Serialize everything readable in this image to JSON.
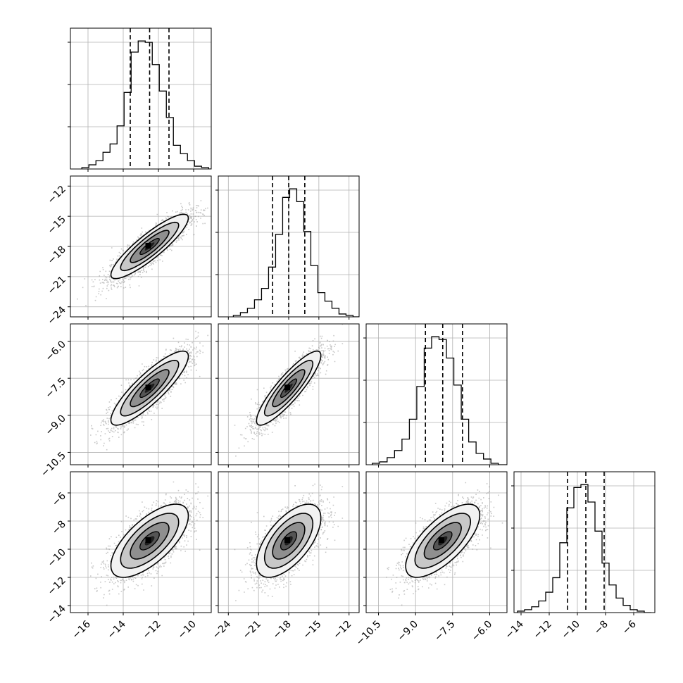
{
  "chart_data": {
    "type": "corner",
    "parameters": [
      {
        "xlim": [
          -17.0,
          -9.0
        ],
        "xticks": [
          -16,
          -14,
          -12,
          -10
        ],
        "xtick_labels": [
          "−16",
          "−14",
          "−12",
          "−10"
        ],
        "quantiles": [
          -13.6,
          -12.5,
          -11.4
        ],
        "hist_lo": -16.35,
        "hist_step": 0.4,
        "hist_counts": [
          1,
          3,
          6,
          12,
          18,
          31,
          55,
          84,
          92,
          91,
          75,
          56,
          37,
          17,
          11,
          6,
          2,
          1,
          0
        ]
      },
      {
        "xlim": [
          -25.0,
          -11.0
        ],
        "xticks": [
          -24,
          -21,
          -18,
          -15,
          -12
        ],
        "xtick_labels": [
          "−24",
          "−21",
          "−18",
          "−15",
          "−12"
        ],
        "yticks": [
          -24,
          -21,
          -18,
          -15,
          -12
        ],
        "ytick_labels": [
          "−24",
          "−21",
          "−18",
          "−15",
          "−12"
        ],
        "quantiles": [
          -19.6,
          -18.0,
          -16.4
        ],
        "hist_lo": -23.5,
        "hist_step": 0.7,
        "hist_counts": [
          1,
          3,
          6,
          12,
          20,
          35,
          58,
          84,
          90,
          81,
          60,
          36,
          17,
          11,
          6,
          2,
          1,
          0,
          0
        ]
      },
      {
        "xlim": [
          -11.0,
          -5.3
        ],
        "xticks": [
          -10.5,
          -9.0,
          -7.5,
          -6.0
        ],
        "xtick_labels": [
          "−10.5",
          "−9.0",
          "−7.5",
          "−6.0"
        ],
        "yticks": [
          -10.5,
          -9.0,
          -7.5,
          -6.0
        ],
        "ytick_labels": [
          "−10.5",
          "−9.0",
          "−7.5",
          "−6.0"
        ],
        "quantiles": [
          -8.6,
          -7.9,
          -7.1
        ],
        "hist_lo": -10.75,
        "hist_step": 0.3,
        "hist_counts": [
          1,
          2,
          5,
          10,
          18,
          32,
          55,
          82,
          90,
          88,
          75,
          56,
          32,
          16,
          8,
          4,
          1,
          0,
          0
        ]
      },
      {
        "xlim": [
          -14.5,
          -4.5
        ],
        "xticks": [
          -14,
          -12,
          -10,
          -8,
          -6
        ],
        "xtick_labels": [
          "−14",
          "−12",
          "−10",
          "−8",
          "−6"
        ],
        "yticks": [
          -14,
          -12,
          -10,
          -8,
          -6
        ],
        "ytick_labels": [
          "−14",
          "−12",
          "−10",
          "−8",
          "−6"
        ],
        "quantiles": [
          -10.7,
          -9.4,
          -8.1
        ],
        "hist_lo": -14.25,
        "hist_step": 0.5,
        "hist_counts": [
          1,
          2,
          4,
          8,
          14,
          24,
          48,
          72,
          86,
          88,
          76,
          56,
          34,
          19,
          10,
          5,
          2,
          1,
          0
        ]
      }
    ],
    "pairs": [
      {
        "x": 0,
        "y": 1,
        "mean": [
          -12.5,
          -18.0
        ],
        "sd": [
          1.1,
          1.6
        ],
        "rho": 0.88
      },
      {
        "x": 0,
        "y": 2,
        "mean": [
          -12.5,
          -7.9
        ],
        "sd": [
          1.1,
          0.75
        ],
        "rho": 0.86
      },
      {
        "x": 1,
        "y": 2,
        "mean": [
          -18.0,
          -7.9
        ],
        "sd": [
          1.6,
          0.75
        ],
        "rho": 0.88
      },
      {
        "x": 0,
        "y": 3,
        "mean": [
          -12.5,
          -9.4
        ],
        "sd": [
          1.1,
          1.3
        ],
        "rho": 0.68
      },
      {
        "x": 1,
        "y": 3,
        "mean": [
          -18.0,
          -9.4
        ],
        "sd": [
          1.6,
          1.3
        ],
        "rho": 0.62
      },
      {
        "x": 2,
        "y": 3,
        "mean": [
          -7.9,
          -9.4
        ],
        "sd": [
          0.75,
          1.3
        ],
        "rho": 0.7
      }
    ],
    "contour_levels_sigma": [
      0.5,
      1.0,
      1.5,
      2.0
    ],
    "grid": true,
    "colors": {
      "line": "#000000",
      "grid": "#b0b0b0",
      "points": "#9a9a9a",
      "density": [
        "#f2f2f2",
        "#c8c8c8",
        "#8f8f8f",
        "#555555",
        "#1e1e1e",
        "#000000"
      ]
    }
  }
}
